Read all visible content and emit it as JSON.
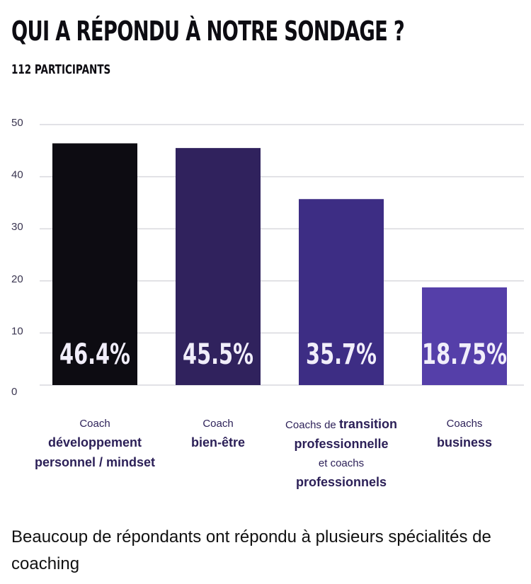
{
  "header": {
    "title": "QUI A RÉPONDU À NOTRE SONDAGE ?",
    "subtitle": "112 PARTICIPANTS"
  },
  "chart_data": {
    "type": "bar",
    "categories": [
      "Coach développement personnel / mindset",
      "Coach bien-être",
      "Coachs de transition professionnelle et coachs professionnels",
      "Coachs business"
    ],
    "values": [
      46.4,
      45.5,
      35.7,
      18.75
    ],
    "data_labels": [
      "46.4%",
      "45.5%",
      "35.7%",
      "18.75%"
    ],
    "colors": [
      "#0d0c12",
      "#30225d",
      "#3d2d84",
      "#553fa9"
    ],
    "ylim": [
      0,
      50
    ],
    "yticks": [
      0,
      10,
      20,
      30,
      40,
      50
    ],
    "grid": true
  },
  "category_labels": [
    {
      "l1": "Coach",
      "b1": "développement",
      "b2": "personnel / mindset"
    },
    {
      "l1": "Coach",
      "b1": "bien-être"
    },
    {
      "l1": "Coachs de ",
      "b1": "transition",
      "b2": "professionnelle",
      "l2": "et coachs",
      "b3": "professionnels"
    },
    {
      "l1": "Coachs",
      "b1": "business"
    }
  ],
  "footnote": "Beaucoup de répondants ont répondu à plusieurs spécialités de coaching"
}
